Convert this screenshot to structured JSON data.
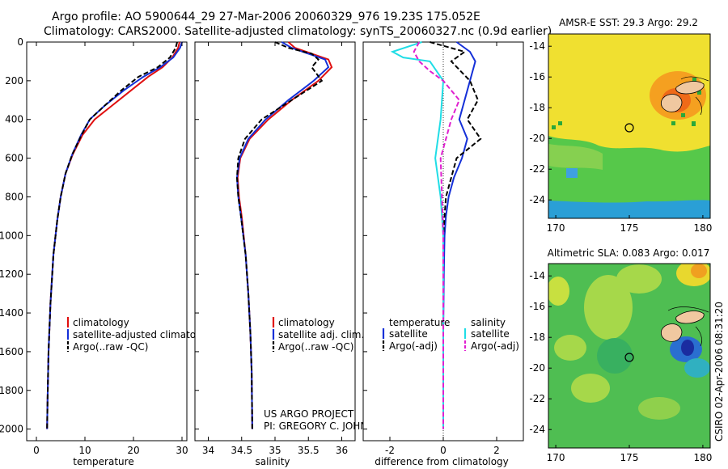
{
  "header": {
    "line1": "Argo profile: AO 5900644_29 27-Mar-2006 20060329_976 19.23S 175.052E",
    "line2": "Climatology: CARS2000. Satellite-adjusted climatology: synTS_20060327.nc (0.9d earlier)"
  },
  "credit": {
    "project": "US ARGO PROJECT",
    "pi": "PI: GREGORY C. JOHNSON",
    "stamp": "CSIRO 02-Apr-2006 08:31:20"
  },
  "colors": {
    "climatology": "#e01010",
    "satellite": "#1530d8",
    "argo": "#000000",
    "temp_adj": "#000000",
    "sal_satellite": "#20dde6",
    "sal_argo": "#e020d0"
  },
  "chart_data": [
    {
      "type": "line",
      "name": "temperature-profile",
      "xlabel": "temperature",
      "ylabel": "",
      "xlim": [
        -2,
        31
      ],
      "ylim": [
        2060,
        0
      ],
      "xticks": [
        "0",
        "10",
        "20",
        "30"
      ],
      "yticks": [
        "0",
        "200",
        "400",
        "600",
        "800",
        "1000",
        "1200",
        "1400",
        "1600",
        "1800",
        "2000"
      ],
      "legend": [
        "climatology",
        "satellite-adjusted climatology",
        "Argo(..raw -QC)"
      ],
      "series": [
        {
          "name": "climatology",
          "x": [
            29.5,
            29.2,
            28.0,
            26.0,
            23.0,
            19.5,
            15.5,
            12.0,
            9.5,
            7.5,
            6.0,
            5.0,
            4.3,
            3.5,
            2.9,
            2.5,
            2.3,
            2.2
          ],
          "y": [
            0,
            30,
            80,
            130,
            180,
            250,
            330,
            400,
            480,
            580,
            680,
            800,
            920,
            1100,
            1350,
            1600,
            1850,
            2000
          ]
        },
        {
          "name": "satellite-adjusted climatology",
          "x": [
            30.0,
            29.6,
            28.2,
            25.5,
            22.0,
            18.0,
            14.0,
            11.0,
            9.2,
            7.4,
            6.0,
            5.0,
            4.3,
            3.5,
            2.9,
            2.5,
            2.3,
            2.2
          ],
          "y": [
            0,
            30,
            80,
            130,
            180,
            250,
            330,
            400,
            480,
            580,
            680,
            800,
            920,
            1100,
            1350,
            1600,
            1850,
            2000
          ]
        },
        {
          "name": "Argo(..raw -QC)",
          "x": [
            29.0,
            28.7,
            27.5,
            25.0,
            21.0,
            17.5,
            14.0,
            11.0,
            9.3,
            7.4,
            6.0,
            5.0,
            4.3,
            3.5,
            2.9,
            2.5,
            2.3,
            2.2
          ],
          "y": [
            0,
            30,
            80,
            130,
            180,
            250,
            330,
            400,
            480,
            580,
            680,
            800,
            920,
            1100,
            1350,
            1600,
            1850,
            2000
          ]
        }
      ]
    },
    {
      "type": "line",
      "name": "salinity-profile",
      "xlabel": "salinity",
      "xlim": [
        33.8,
        36.2
      ],
      "ylim": [
        2060,
        0
      ],
      "xticks": [
        "34",
        "34.5",
        "35",
        "35.5",
        "36"
      ],
      "legend": [
        "climatology",
        "satellite adj. clim.",
        "Argo(..raw -QC)"
      ],
      "series": [
        {
          "name": "climatology",
          "x": [
            35.2,
            35.3,
            35.55,
            35.8,
            35.85,
            35.65,
            35.25,
            34.9,
            34.62,
            34.48,
            34.44,
            34.46,
            34.5,
            34.56,
            34.6,
            34.63,
            34.65,
            34.66
          ],
          "y": [
            0,
            30,
            60,
            90,
            130,
            200,
            300,
            400,
            500,
            600,
            700,
            800,
            900,
            1100,
            1300,
            1500,
            1700,
            2000
          ]
        },
        {
          "name": "satellite adj. clim.",
          "x": [
            35.1,
            35.25,
            35.5,
            35.75,
            35.8,
            35.58,
            35.2,
            34.86,
            34.6,
            34.47,
            34.43,
            34.45,
            34.49,
            34.56,
            34.6,
            34.63,
            34.65,
            34.66
          ],
          "y": [
            0,
            30,
            60,
            90,
            130,
            200,
            300,
            400,
            500,
            600,
            700,
            800,
            900,
            1100,
            1300,
            1500,
            1700,
            2000
          ]
        },
        {
          "name": "Argo(..raw -QC)",
          "x": [
            35.0,
            35.2,
            35.55,
            35.65,
            35.55,
            35.7,
            35.25,
            34.8,
            34.55,
            34.45,
            34.43,
            34.45,
            34.49,
            34.56,
            34.6,
            34.63,
            34.65,
            34.66
          ],
          "y": [
            0,
            30,
            60,
            90,
            130,
            200,
            300,
            400,
            500,
            600,
            700,
            800,
            900,
            1100,
            1300,
            1500,
            1700,
            2000
          ]
        }
      ]
    },
    {
      "type": "line",
      "name": "difference-profile",
      "xlabel": "difference from climatology",
      "xlim": [
        -3,
        3
      ],
      "ylim": [
        2060,
        0
      ],
      "xticks": [
        "-2",
        "0",
        "2"
      ],
      "legend": [
        "temperature",
        "satellite",
        "Argo(-adj)",
        "salinity",
        "satellite",
        "Argo(-adj)"
      ],
      "series": [
        {
          "name": "temperature satellite",
          "x": [
            0.5,
            1.0,
            1.2,
            1.0,
            0.8,
            0.6,
            0.9,
            0.7,
            0.4,
            0.2,
            0.1,
            0.05,
            0.02,
            0.0,
            0.0
          ],
          "y": [
            0,
            50,
            100,
            200,
            300,
            400,
            500,
            600,
            700,
            800,
            900,
            1000,
            1200,
            1500,
            2000
          ]
        },
        {
          "name": "temperature Argo(-adj)",
          "x": [
            -0.5,
            0.8,
            0.3,
            1.0,
            1.3,
            0.9,
            1.4,
            0.5,
            0.3,
            0.1,
            0.05,
            0.0,
            0.0
          ],
          "y": [
            0,
            50,
            100,
            200,
            300,
            400,
            500,
            600,
            700,
            800,
            900,
            1000,
            2000
          ]
        },
        {
          "name": "salinity satellite",
          "x": [
            -0.8,
            -1.9,
            -1.5,
            -0.5,
            0.0,
            -0.1,
            -0.3,
            -0.2,
            -0.1,
            -0.05,
            0.0,
            0.0
          ],
          "y": [
            0,
            50,
            80,
            100,
            200,
            400,
            600,
            700,
            800,
            900,
            1000,
            2000
          ]
        },
        {
          "name": "salinity Argo(-adj)",
          "x": [
            -0.9,
            -1.1,
            -0.9,
            -0.5,
            0.0,
            0.6,
            0.3,
            0.1,
            -0.1,
            -0.05,
            0.0,
            0.0
          ],
          "y": [
            0,
            50,
            100,
            150,
            200,
            300,
            400,
            500,
            600,
            800,
            1000,
            2000
          ]
        }
      ]
    },
    {
      "type": "heatmap",
      "name": "amsre-sst-map",
      "title": "AMSR-E SST: 29.3 Argo: 29.2",
      "xticks": [
        "170",
        "175",
        "180"
      ],
      "yticks": [
        "-14",
        "-16",
        "-18",
        "-20",
        "-22",
        "-24"
      ],
      "xlim": [
        169.5,
        180.5
      ],
      "ylim": [
        -25.2,
        -13.2
      ],
      "argo_position": [
        175.052,
        -19.23
      ]
    },
    {
      "type": "heatmap",
      "name": "altimetric-sla-map",
      "title": "Altimetric SLA: 0.083 Argo: 0.017",
      "xticks": [
        "170",
        "175",
        "180"
      ],
      "yticks": [
        "-14",
        "-16",
        "-18",
        "-20",
        "-22",
        "-24"
      ],
      "xlim": [
        169.5,
        180.5
      ],
      "ylim": [
        -25.2,
        -13.2
      ],
      "argo_position": [
        175.052,
        -19.23
      ]
    }
  ]
}
